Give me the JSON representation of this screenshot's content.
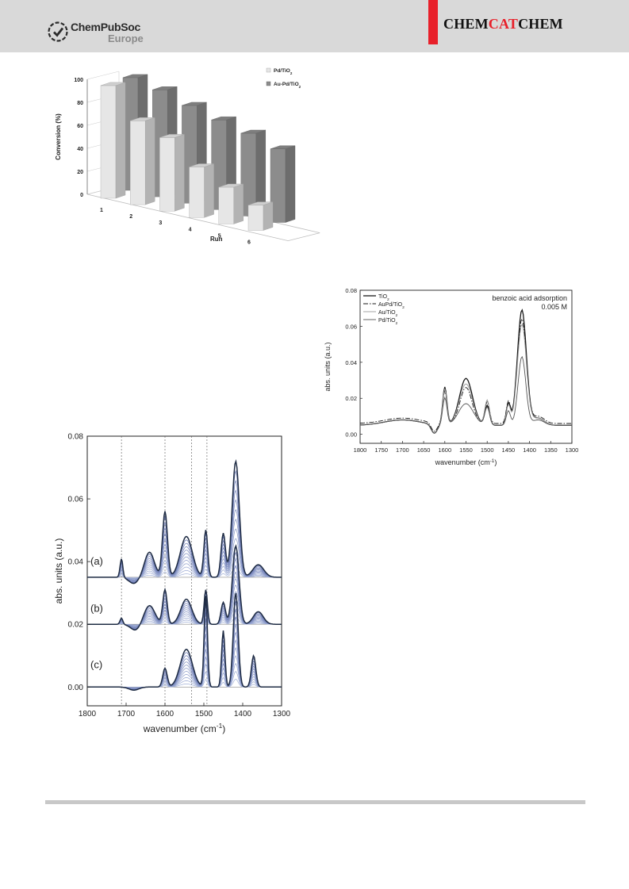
{
  "header": {
    "logo_name": "ChemPubSoc",
    "logo_sub": "Europe",
    "journal_parts": [
      "CHEM",
      "CAT",
      "CHEM"
    ],
    "accent_color": "#e8202a",
    "band_color": "#d9d9d9"
  },
  "chart_data": [
    {
      "id": "bar3d",
      "type": "bar",
      "ylabel": "Conversion (%)",
      "xlabel": "Run",
      "ylim": [
        0,
        100
      ],
      "yticks": [
        "0",
        "20",
        "40",
        "60",
        "80",
        "100"
      ],
      "categories": [
        "1",
        "2",
        "3",
        "4",
        "5",
        "6"
      ],
      "series": [
        {
          "name": "Pd/TiO",
          "name_sub": "2",
          "color": "#e6e6e6",
          "values": [
            98,
            73,
            64,
            44,
            32,
            22
          ]
        },
        {
          "name": "Au-Pd/TiO",
          "name_sub": "2",
          "color": "#8c8c8c",
          "values": [
            98,
            93,
            85,
            78,
            72,
            64
          ]
        }
      ]
    },
    {
      "id": "ir-series",
      "type": "line",
      "xlabel": "wavenumber (cm",
      "xlabel_sup": "-1",
      "xlabel_tail": ")",
      "ylabel": "abs. units (a.u.)",
      "xlim": [
        1800,
        1300
      ],
      "ylim": [
        -0.006,
        0.08
      ],
      "xticks": [
        "1800",
        "1700",
        "1600",
        "1500",
        "1400",
        "1300"
      ],
      "yticks": [
        "0.00",
        "0.02",
        "0.04",
        "0.06",
        "0.08"
      ],
      "panel_labels": [
        "(a)",
        "(b)",
        "(c)"
      ],
      "baselines": [
        0.035,
        0.02,
        0.0
      ],
      "reference_lines": [
        1712,
        1600,
        1532,
        1492
      ]
    },
    {
      "id": "benzoic",
      "type": "line",
      "annotation": [
        "benzoic acid adsorption",
        "0.005 M"
      ],
      "xlabel": "wavenumber (cm",
      "xlabel_sup": "-1",
      "xlabel_tail": ")",
      "ylabel": "abs. units (a.u.)",
      "xlim": [
        1800,
        1300
      ],
      "ylim": [
        -0.005,
        0.08
      ],
      "xticks": [
        "1800",
        "1750",
        "1700",
        "1650",
        "1600",
        "1550",
        "1500",
        "1450",
        "1400",
        "1350",
        "1300"
      ],
      "yticks": [
        "0.00",
        "0.02",
        "0.04",
        "0.06",
        "0.08"
      ],
      "series": [
        {
          "name": "TiO",
          "name_sub": "2",
          "color": "#1a1a1a",
          "dash": "",
          "width": 1.3
        },
        {
          "name": "AuPd/TiO",
          "name_sub": "2",
          "color": "#1a1a1a",
          "dash": "6,2,1.5,2",
          "width": 0.9
        },
        {
          "name": "Au/TiO",
          "name_sub": "2",
          "color": "#9a9a9a",
          "dash": "",
          "width": 0.9
        },
        {
          "name": "Pd/TiO",
          "name_sub": "2",
          "color": "#555555",
          "dash": "",
          "width": 0.9
        }
      ]
    }
  ]
}
